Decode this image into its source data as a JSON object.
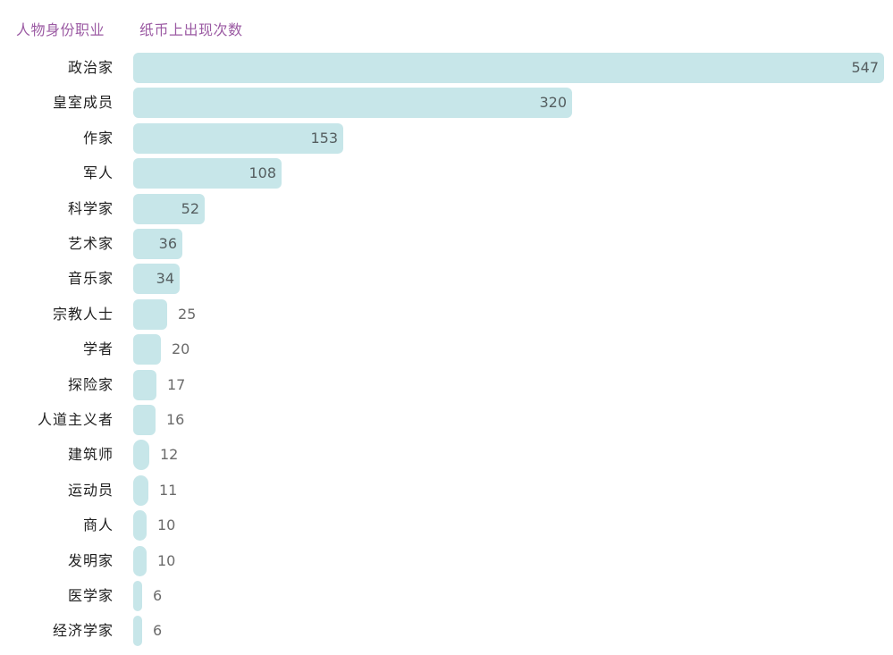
{
  "header": {
    "category_label": "人物身份职业",
    "value_label": "纸币上出现次数"
  },
  "colors": {
    "bar": "#c7e6e9",
    "header_text": "#9b5aa3",
    "category_text": "#1f1f1f",
    "value_inside_text": "#555e60",
    "value_outside_text": "#6b6b6b"
  },
  "chart_data": {
    "type": "bar",
    "orientation": "horizontal",
    "title": "",
    "xlabel": "纸币上出现次数",
    "ylabel": "人物身份职业",
    "categories": [
      "政治家",
      "皇室成员",
      "作家",
      "军人",
      "科学家",
      "艺术家",
      "音乐家",
      "宗教人士",
      "学者",
      "探险家",
      "人道主义者",
      "建筑师",
      "运动员",
      "商人",
      "发明家",
      "医学家",
      "经济学家"
    ],
    "values": [
      547,
      320,
      153,
      108,
      52,
      36,
      34,
      25,
      20,
      17,
      16,
      12,
      11,
      10,
      10,
      6,
      6
    ],
    "xlim": [
      0,
      547
    ],
    "grid": false,
    "legend": null,
    "data_labels": true
  },
  "rows": [
    {
      "label": "政治家",
      "value": "547"
    },
    {
      "label": "皇室成员",
      "value": "320"
    },
    {
      "label": "作家",
      "value": "153"
    },
    {
      "label": "军人",
      "value": "108"
    },
    {
      "label": "科学家",
      "value": "52"
    },
    {
      "label": "艺术家",
      "value": "36"
    },
    {
      "label": "音乐家",
      "value": "34"
    },
    {
      "label": "宗教人士",
      "value": "25"
    },
    {
      "label": "学者",
      "value": "20"
    },
    {
      "label": "探险家",
      "value": "17"
    },
    {
      "label": "人道主义者",
      "value": "16"
    },
    {
      "label": "建筑师",
      "value": "12"
    },
    {
      "label": "运动员",
      "value": "11"
    },
    {
      "label": "商人",
      "value": "10"
    },
    {
      "label": "发明家",
      "value": "10"
    },
    {
      "label": "医学家",
      "value": "6"
    },
    {
      "label": "经济学家",
      "value": "6"
    }
  ]
}
